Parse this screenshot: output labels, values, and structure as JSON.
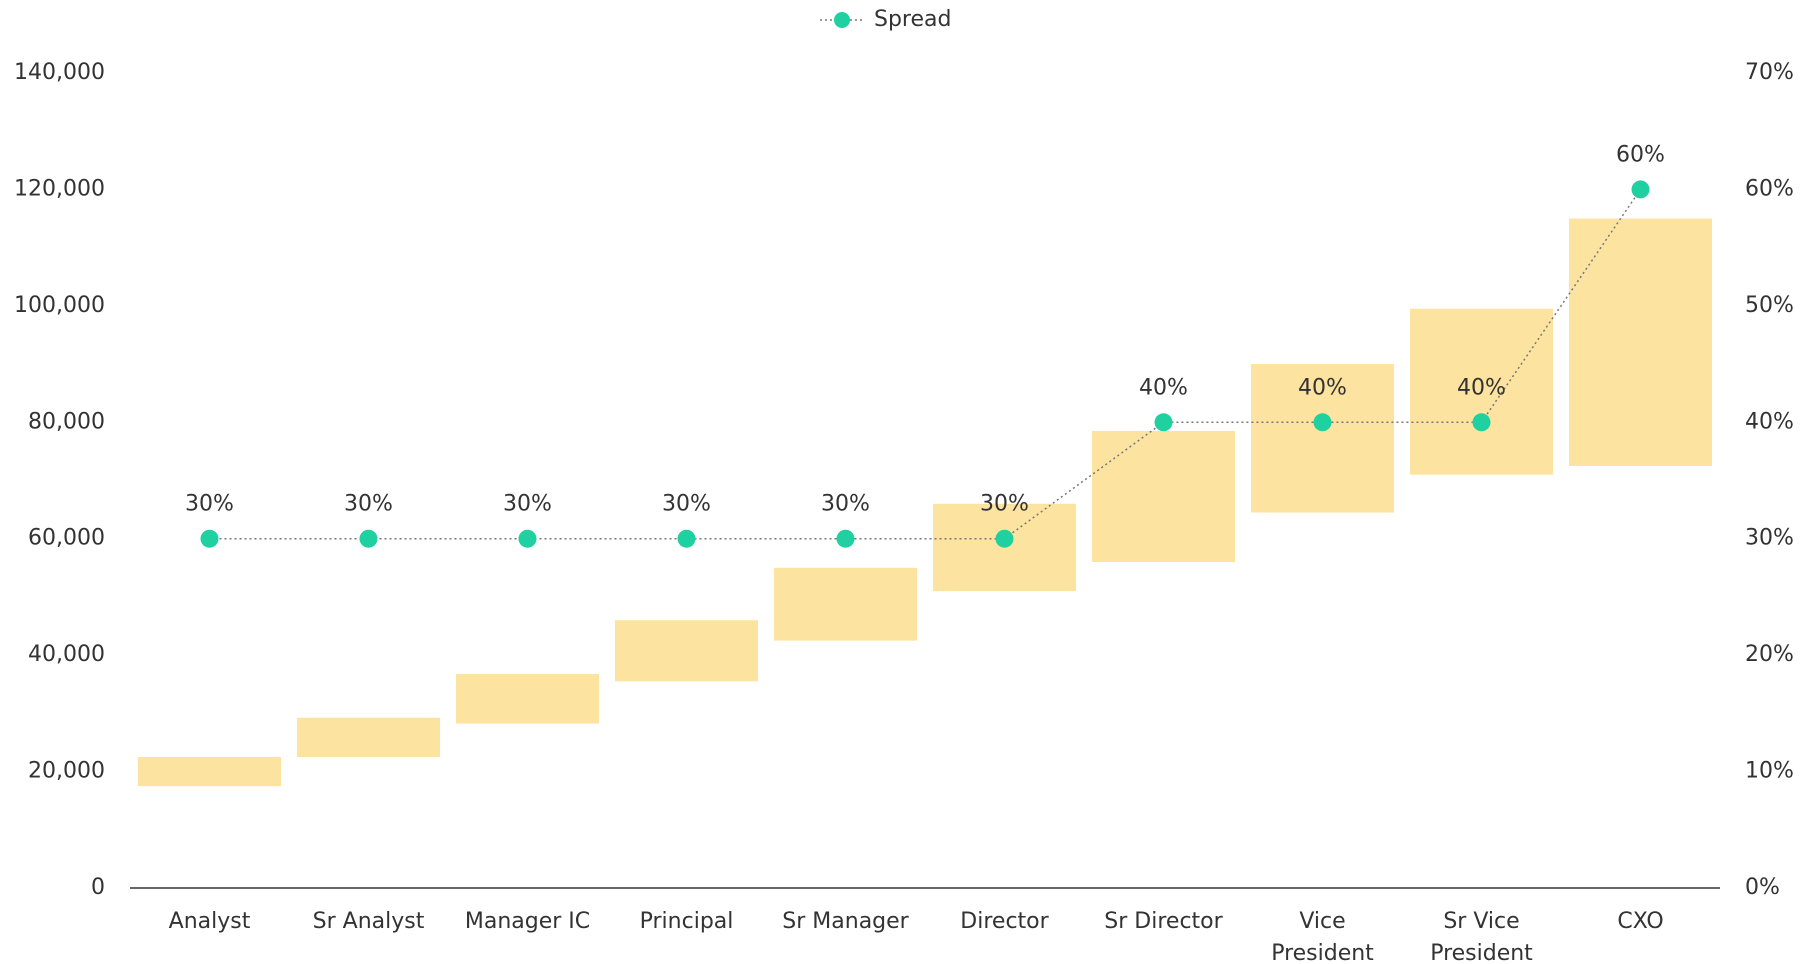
{
  "chart_data": {
    "type": "floating-bar-line",
    "categories": [
      "Analyst",
      "Sr Analyst",
      "Manager IC",
      "Principal",
      "Sr Manager",
      "Director",
      "Sr Director",
      "Vice President",
      "Sr Vice President",
      "CXO"
    ],
    "bars": {
      "color": "#fde3a0",
      "low": [
        17500,
        22500,
        28250,
        35500,
        42500,
        51000,
        56000,
        64500,
        71000,
        72500
      ],
      "high": [
        22500,
        29250,
        36750,
        46000,
        55000,
        66000,
        78500,
        90000,
        99500,
        115000
      ]
    },
    "series": [
      {
        "name": "Spread",
        "color": "#1fd1a0",
        "axis": "y2",
        "values": [
          30,
          30,
          30,
          30,
          30,
          30,
          40,
          40,
          40,
          60
        ],
        "value_labels": [
          "30%",
          "30%",
          "30%",
          "30%",
          "30%",
          "30%",
          "40%",
          "40%",
          "40%",
          "60%"
        ]
      }
    ],
    "ylim": [
      0,
      140000
    ],
    "yticks": [
      0,
      {
        "value": 20000,
        "label": "20,000"
      },
      {
        "value": 40000,
        "label": "40,000"
      },
      {
        "value": 60000,
        "label": "60,000"
      },
      {
        "value": 80000,
        "label": "80,000"
      },
      {
        "value": 100000,
        "label": "100,000"
      },
      {
        "value": 120000,
        "label": "120,000"
      },
      {
        "value": 140000,
        "label": "140,000"
      }
    ],
    "y2lim": [
      0,
      70
    ],
    "y2ticks": [
      {
        "value": 0,
        "label": "0%"
      },
      {
        "value": 10,
        "label": "10%"
      },
      {
        "value": 20,
        "label": "20%"
      },
      {
        "value": 30,
        "label": "30%"
      },
      {
        "value": 40,
        "label": "40%"
      },
      {
        "value": 50,
        "label": "50%"
      },
      {
        "value": 60,
        "label": "60%"
      },
      {
        "value": 70,
        "label": "70%"
      }
    ],
    "legend": "top",
    "grid": false
  }
}
